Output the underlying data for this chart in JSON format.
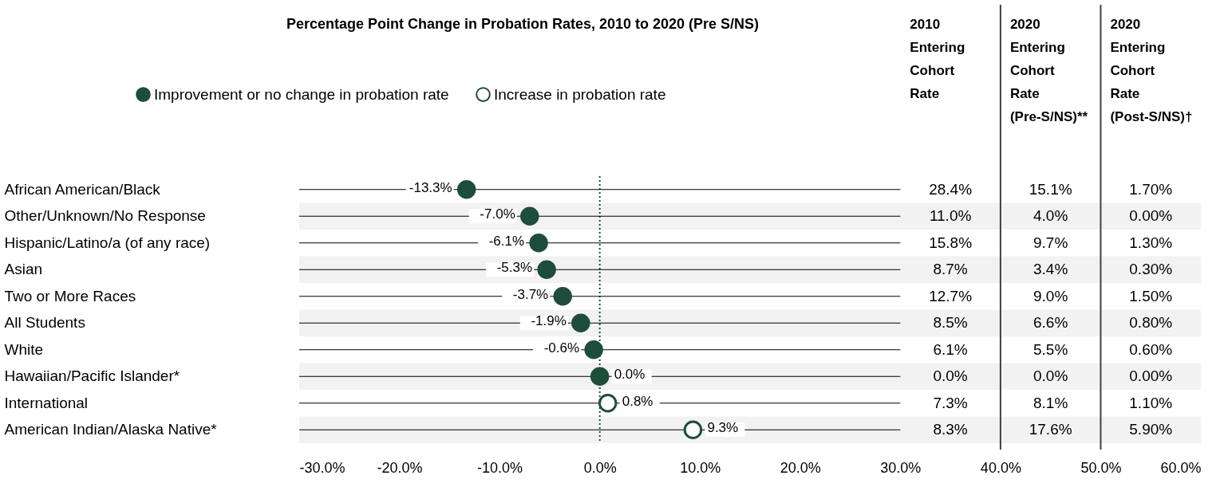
{
  "chart_data": {
    "type": "scatter",
    "title": "Percentage Point Change in Probation Rates, 2010 to 2020 (Pre S/NS)",
    "categories": [
      "African American/Black",
      "Other/Unknown/No Response",
      "Hispanic/Latino/a (of any race)",
      "Asian",
      "Two or More Races",
      "All Students",
      "White",
      "Hawaiian/Pacific Islander*",
      "International",
      "American Indian/Alaska Native*"
    ],
    "series": [
      {
        "name": "Improvement or no change in probation rate",
        "color": "#1e4d3c",
        "values": [
          -13.3,
          -7.0,
          -6.1,
          -5.3,
          -3.7,
          -1.9,
          -0.6,
          0.0,
          null,
          null
        ],
        "value_labels": [
          "-13.3%",
          "-7.0%",
          "-6.1%",
          "-5.3%",
          "-3.7%",
          "-1.9%",
          "-0.6%",
          "0.0%",
          null,
          null
        ]
      },
      {
        "name": "Increase in probation rate",
        "color": "#ffffff",
        "values": [
          null,
          null,
          null,
          null,
          null,
          null,
          null,
          null,
          0.8,
          9.3
        ],
        "value_labels": [
          null,
          null,
          null,
          null,
          null,
          null,
          null,
          null,
          "0.8%",
          "9.3%"
        ]
      }
    ],
    "annotations": [
      "2010 Entering Cohort Rate",
      "28.4%",
      "11.0%",
      "15.8%",
      "8.7%",
      "12.7%",
      "8.5%",
      "6.1%",
      "0.0%",
      "7.3%",
      "8.3%",
      "2020 Entering Cohort Rate (Pre-S/NS)**",
      "15.1%",
      "4.0%",
      "9.7%",
      "3.4%",
      "9.0%",
      "6.6%",
      "5.5%",
      "0.0%",
      "8.1%",
      "17.6%",
      "2020 Entering Cohort Rate (Post-S/NS)†",
      "1.70%",
      "0.00%",
      "1.30%",
      "0.30%",
      "1.50%",
      "0.80%",
      "0.60%",
      "0.00%",
      "1.10%",
      "5.90%"
    ],
    "ref_lines": [
      {
        "axis": "x",
        "value": 0,
        "line_style": "dotted",
        "color": "#1e4d3c"
      },
      {
        "axis": "x",
        "value": 40,
        "line_style": "solid",
        "color": "#404040"
      },
      {
        "axis": "x",
        "value": 50,
        "line_style": "solid",
        "color": "#404040"
      },
      {
        "axis": "y",
        "value": "African American/Black",
        "color": "#000000"
      },
      {
        "axis": "y",
        "value": "Other/Unknown/No Response",
        "color": "#000000"
      },
      {
        "axis": "y",
        "value": "Hispanic/Latino/a (of any race)",
        "color": "#000000"
      },
      {
        "axis": "y",
        "value": "Asian",
        "color": "#000000"
      },
      {
        "axis": "y",
        "value": "Two or More Races",
        "color": "#000000"
      },
      {
        "axis": "y",
        "value": "All Students",
        "color": "#000000"
      },
      {
        "axis": "y",
        "value": "White",
        "color": "#000000"
      },
      {
        "axis": "y",
        "value": "Hawaiian/Pacific Islander*",
        "color": "#000000"
      },
      {
        "axis": "y",
        "value": "International",
        "color": "#000000"
      },
      {
        "axis": "y",
        "value": "American Indian/Alaska Native*",
        "color": "#000000"
      }
    ],
    "bands": [
      {
        "axis": "y",
        "from": "Other/Unknown/No Response",
        "to": "Other/Unknown/No Response",
        "color": "#f2f2f2"
      },
      {
        "axis": "y",
        "from": "Asian",
        "to": "Asian",
        "color": "#f2f2f2"
      },
      {
        "axis": "y",
        "from": "All Students",
        "to": "All Students",
        "color": "#f2f2f2"
      },
      {
        "axis": "y",
        "from": "Hawaiian/Pacific Islander*",
        "to": "Hawaiian/Pacific Islander*",
        "color": "#f2f2f2"
      },
      {
        "axis": "y",
        "from": "American Indian/Alaska Native*",
        "to": "American Indian/Alaska Native*",
        "color": "#f2f2f2"
      }
    ],
    "xlim": [
      -30,
      60
    ],
    "xticks": [
      {
        "value": -30,
        "label": "-30.0%"
      },
      {
        "value": -20,
        "label": "-20.0%"
      },
      {
        "value": -10,
        "label": "-10.0%"
      },
      {
        "value": 0,
        "label": "0.0%"
      },
      {
        "value": 10,
        "label": "10.0%"
      },
      {
        "value": 20,
        "label": "20.0%"
      },
      {
        "value": 30,
        "label": "30.0%"
      },
      {
        "value": 40,
        "label": "40.0%"
      },
      {
        "value": 50,
        "label": "50.0%"
      },
      {
        "value": 60,
        "label": "60.0%"
      }
    ],
    "orientation": "horizontal",
    "legend": "top",
    "marker": "circle",
    "grid": false
  }
}
